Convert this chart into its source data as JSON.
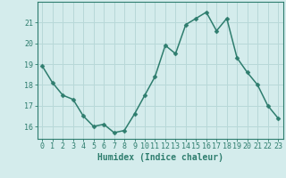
{
  "x": [
    0,
    1,
    2,
    3,
    4,
    5,
    6,
    7,
    8,
    9,
    10,
    11,
    12,
    13,
    14,
    15,
    16,
    17,
    18,
    19,
    20,
    21,
    22,
    23
  ],
  "y": [
    18.9,
    18.1,
    17.5,
    17.3,
    16.5,
    16.0,
    16.1,
    15.7,
    15.8,
    16.6,
    17.5,
    18.4,
    19.9,
    19.5,
    20.9,
    21.2,
    21.5,
    20.6,
    21.2,
    19.3,
    18.6,
    18.0,
    17.0,
    16.4
  ],
  "line_color": "#2e7d6e",
  "marker_color": "#2e7d6e",
  "bg_color": "#d4ecec",
  "grid_color": "#b8d8d8",
  "xlabel": "Humidex (Indice chaleur)",
  "ylim": [
    15.4,
    22.0
  ],
  "xlim": [
    -0.5,
    23.5
  ],
  "yticks": [
    16,
    17,
    18,
    19,
    20,
    21
  ],
  "xticks": [
    0,
    1,
    2,
    3,
    4,
    5,
    6,
    7,
    8,
    9,
    10,
    11,
    12,
    13,
    14,
    15,
    16,
    17,
    18,
    19,
    20,
    21,
    22,
    23
  ],
  "xtick_labels": [
    "0",
    "1",
    "2",
    "3",
    "4",
    "5",
    "6",
    "7",
    "8",
    "9",
    "10",
    "11",
    "12",
    "13",
    "14",
    "15",
    "16",
    "17",
    "18",
    "19",
    "20",
    "21",
    "22",
    "23"
  ],
  "axis_color": "#2e7d6e",
  "tick_color": "#2e7d6e",
  "label_color": "#2e7d6e",
  "font_size": 6.0,
  "marker_size": 2.5,
  "line_width": 1.1
}
